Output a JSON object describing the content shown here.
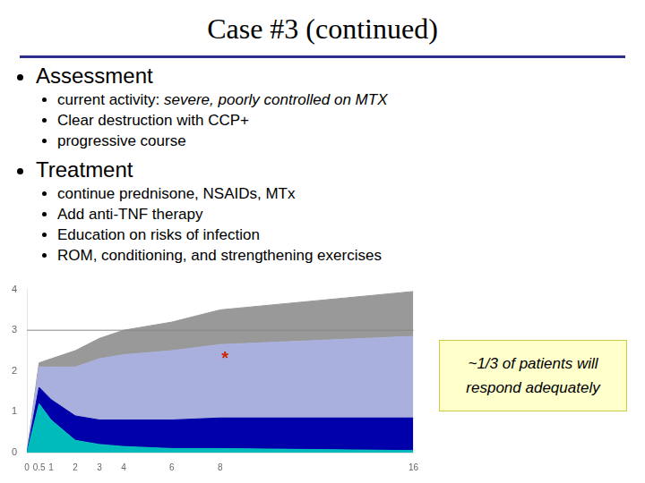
{
  "chart_data": {
    "type": "area",
    "title": "Case #3  (continued)",
    "stacked": true,
    "grid": false,
    "x": [
      0,
      0.5,
      1,
      2,
      3,
      4,
      6,
      8,
      16
    ],
    "series": [
      {
        "color": "#00bbbb",
        "values": [
          0.0,
          1.2,
          0.8,
          0.3,
          0.2,
          0.15,
          0.1,
          0.1,
          0.05
        ]
      },
      {
        "color": "#0000aa",
        "values": [
          0.0,
          0.4,
          0.5,
          0.6,
          0.6,
          0.65,
          0.7,
          0.75,
          0.8
        ]
      },
      {
        "color": "#aab0dd",
        "values": [
          0.0,
          0.5,
          0.8,
          1.2,
          1.5,
          1.6,
          1.7,
          1.8,
          2.0
        ]
      },
      {
        "color": "#999999",
        "values": [
          0.0,
          0.1,
          0.2,
          0.4,
          0.5,
          0.6,
          0.7,
          0.85,
          1.1
        ]
      }
    ],
    "xlim": [
      0,
      16
    ],
    "xticks": [
      0,
      0.5,
      1,
      2,
      3,
      4,
      6,
      8,
      16
    ],
    "ylim": [
      0,
      4
    ],
    "yticks": [
      0,
      1,
      2,
      3,
      4
    ],
    "reference_lines": [
      {
        "y": 3,
        "color": "#888888"
      }
    ],
    "annotations": [
      {
        "text": "*",
        "x": 8.2,
        "y": 2.3,
        "color": "#cc2200"
      }
    ],
    "bullets": [
      {
        "text": "Assessment",
        "items": [
          {
            "text": "current activity: ",
            "emphasis": "severe, poorly controlled on MTX"
          },
          "Clear destruction with CCP+",
          "progressive course"
        ]
      },
      {
        "text": "Treatment",
        "items": [
          "continue prednisone, NSAIDs, MTx",
          "Add anti-TNF therapy",
          "Education on risks of infection",
          "ROM, conditioning, and strengthening exercises"
        ]
      }
    ],
    "note": {
      "text": "~1/3 of patients will\nrespond adequately",
      "color": "#ffffcc",
      "border_color": "#cccc44"
    },
    "separator_color": "#2e2e8c"
  }
}
